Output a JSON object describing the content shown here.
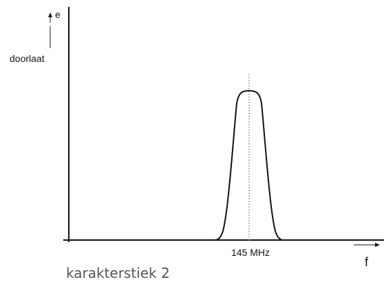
{
  "diagram": {
    "y_axis_symbol": "e",
    "y_axis_label": "doorlaat",
    "x_axis_symbol": "f",
    "peak_label": "145 MHz",
    "caption": "karakterstiek 2"
  },
  "colors": {
    "ink": "#111111",
    "caption": "#555555",
    "dotted_line": "#777777"
  }
}
